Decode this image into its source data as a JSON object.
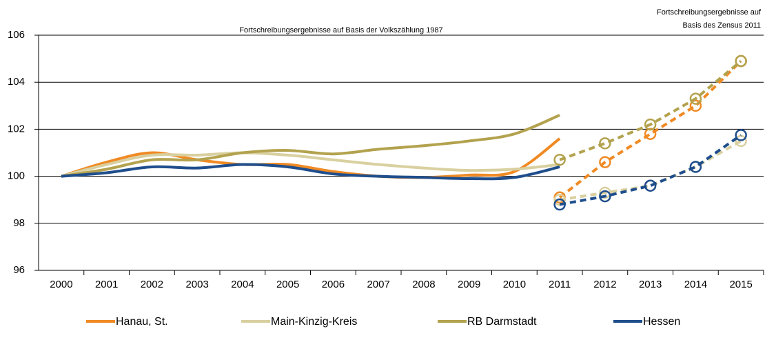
{
  "chart_data": {
    "type": "line",
    "annotations": [
      "Fortschreibungsergebnisse auf Basis der Volkszählung 1987",
      "Fortschreibungsergebnisse auf",
      "Basis des Zensus 2011"
    ],
    "categories": [
      "2000",
      "2001",
      "2002",
      "2003",
      "2004",
      "2005",
      "2006",
      "2007",
      "2008",
      "2009",
      "2010",
      "2011",
      "2012",
      "2013",
      "2014",
      "2015"
    ],
    "ylim": [
      96,
      106
    ],
    "yticks": [
      96,
      98,
      100,
      102,
      104,
      106
    ],
    "grid": true,
    "series": [
      {
        "name": "Hanau, St.",
        "color": "#f08a24",
        "values": [
          100,
          100.6,
          101.0,
          100.7,
          100.5,
          100.5,
          100.2,
          100.0,
          99.95,
          100.05,
          100.2,
          101.6,
          null,
          null,
          null,
          null
        ],
        "values_zensus": [
          null,
          null,
          null,
          null,
          null,
          null,
          null,
          null,
          null,
          null,
          null,
          99.1,
          100.6,
          101.8,
          103.0,
          104.9
        ]
      },
      {
        "name": "Main-Kinzig-Kreis",
        "color": "#d9d0a0",
        "values": [
          100,
          100.5,
          100.9,
          100.9,
          101.0,
          100.9,
          100.7,
          100.5,
          100.35,
          100.25,
          100.3,
          100.5,
          null,
          null,
          null,
          null
        ],
        "values_zensus": [
          null,
          null,
          null,
          null,
          null,
          null,
          null,
          null,
          null,
          null,
          null,
          99.0,
          99.3,
          99.6,
          100.4,
          101.5
        ]
      },
      {
        "name": "RB Darmstadt",
        "color": "#b3a24e",
        "values": [
          100,
          100.3,
          100.7,
          100.7,
          101.0,
          101.1,
          100.95,
          101.15,
          101.3,
          101.5,
          101.8,
          102.6,
          null,
          null,
          null,
          null
        ],
        "values_zensus": [
          null,
          null,
          null,
          null,
          null,
          null,
          null,
          null,
          null,
          null,
          null,
          100.7,
          101.4,
          102.2,
          103.3,
          104.9
        ]
      },
      {
        "name": "Hessen",
        "color": "#1f4e8c",
        "values": [
          100,
          100.15,
          100.4,
          100.35,
          100.5,
          100.4,
          100.1,
          100.0,
          99.95,
          99.9,
          99.95,
          100.4,
          null,
          null,
          null,
          null
        ],
        "values_zensus": [
          null,
          null,
          null,
          null,
          null,
          null,
          null,
          null,
          null,
          null,
          null,
          98.8,
          99.15,
          99.6,
          100.4,
          101.75
        ]
      }
    ]
  }
}
